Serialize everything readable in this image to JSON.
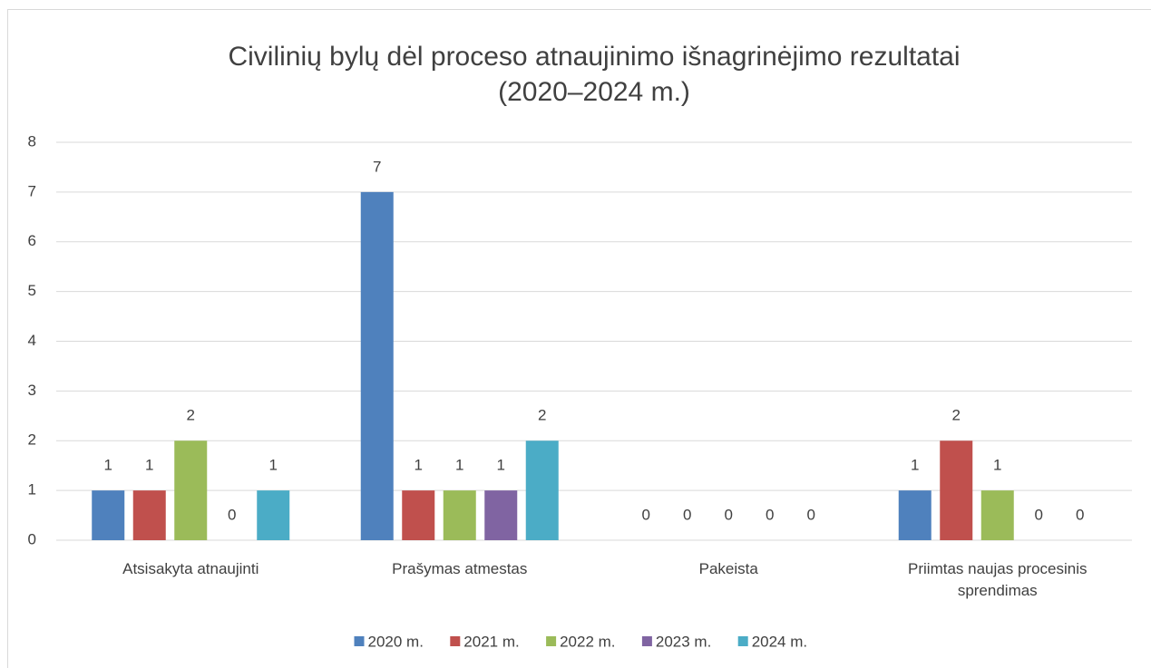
{
  "chart_data": {
    "type": "bar",
    "title": [
      "Civilinių bylų dėl proceso atnaujinimo išnagrinėjimo rezultatai",
      "(2020–2024 m.)"
    ],
    "categories": [
      "Atsisakyta atnaujinti",
      "Prašymas atmestas",
      "Pakeista",
      "Priimtas naujas procesinis sprendimas"
    ],
    "series": [
      {
        "name": "2020 m.",
        "color": "#4f81bd",
        "values": [
          1,
          7,
          0,
          1
        ]
      },
      {
        "name": "2021 m.",
        "color": "#c0504d",
        "values": [
          1,
          1,
          0,
          2
        ]
      },
      {
        "name": "2022 m.",
        "color": "#9bbb59",
        "values": [
          2,
          1,
          0,
          1
        ]
      },
      {
        "name": "2023 m.",
        "color": "#8064a2",
        "values": [
          0,
          1,
          0,
          0
        ]
      },
      {
        "name": "2024 m.",
        "color": "#4bacc6",
        "values": [
          1,
          2,
          0,
          0
        ]
      }
    ],
    "ylim": [
      0,
      8
    ],
    "yticks": [
      0,
      1,
      2,
      3,
      4,
      5,
      6,
      7,
      8
    ],
    "grid": true,
    "legend": "bottom"
  }
}
